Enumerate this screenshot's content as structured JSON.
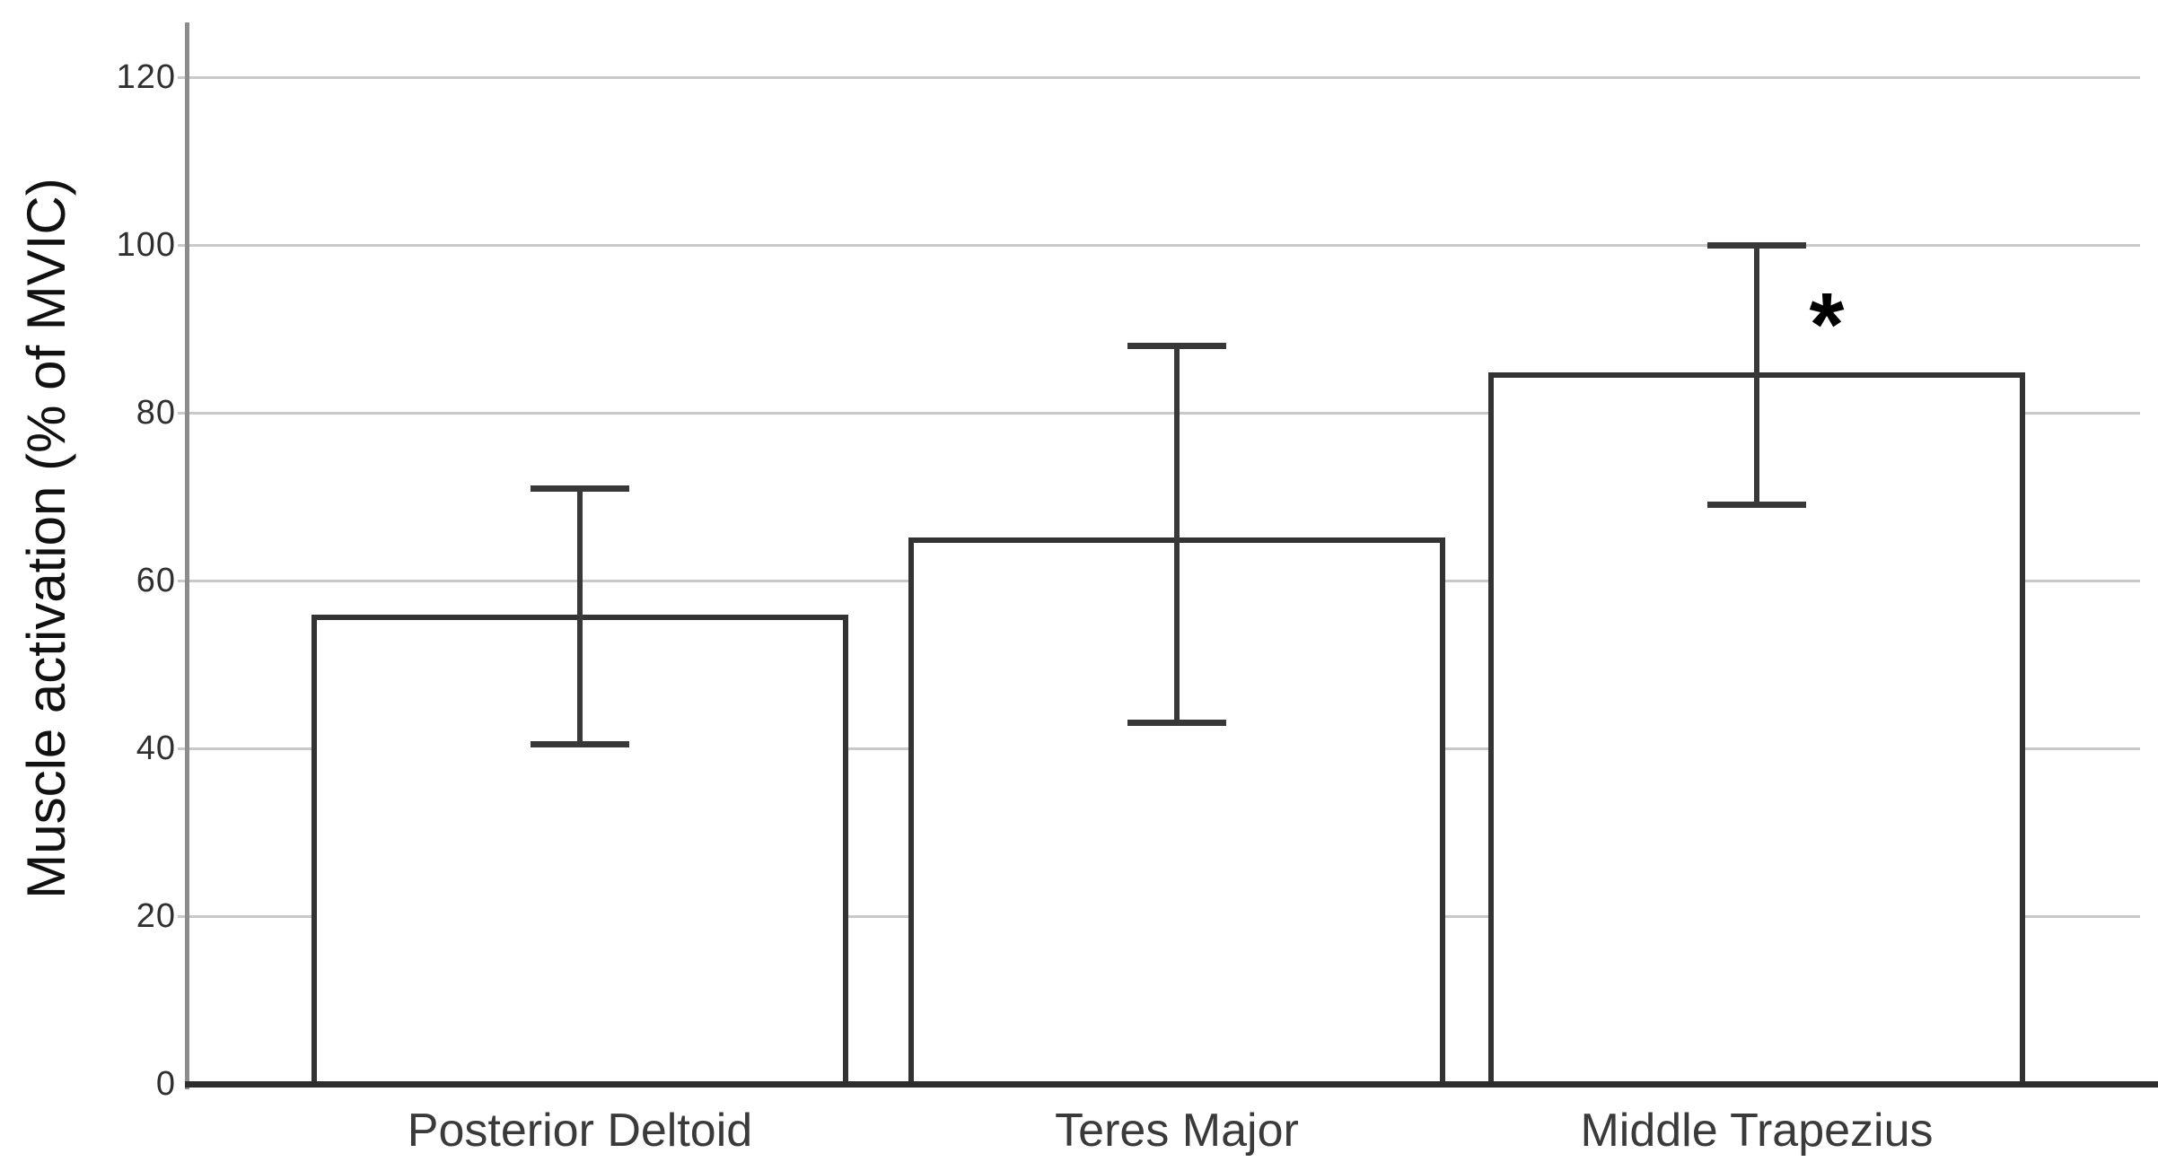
{
  "chart_data": {
    "type": "bar",
    "title": "",
    "xlabel": "",
    "ylabel": "Muscle activation (% of MVIC)",
    "categories": [
      "Posterior Deltoid",
      "Teres Major",
      "Middle Trapezius"
    ],
    "values": [
      55.9,
      65.1,
      84.8
    ],
    "error_high": [
      71,
      88,
      100
    ],
    "error_low": [
      40.5,
      43,
      69
    ],
    "significance_markers": [
      "",
      "",
      "*"
    ],
    "yticks": [
      0,
      20,
      40,
      60,
      80,
      100,
      120
    ],
    "ylim": [
      0,
      126.5
    ],
    "grid": true,
    "legend": "none",
    "colors": {
      "bar_fill": "#ffffff",
      "bar_border": "#333333",
      "error_bar": "#383838",
      "gridline": "#c9c9c9",
      "y_axis": "#8c8c8c",
      "baseline": "#2e2e2e",
      "tick_text": "#2f2f2f",
      "label_text": "#3a3a3a",
      "background": "#ffffff"
    }
  }
}
